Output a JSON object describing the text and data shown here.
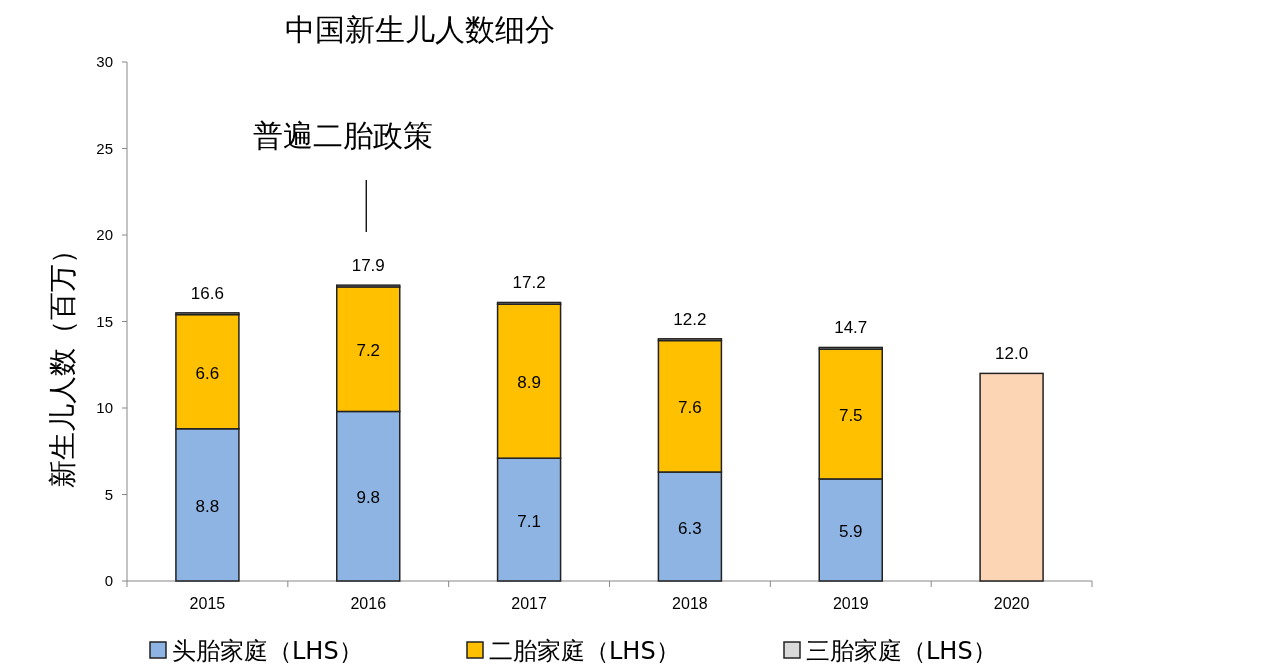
{
  "chart_data": {
    "type": "bar",
    "title": "中国新生儿人数细分",
    "ylabel": "新生儿人数（百万）",
    "stacked": true,
    "legend": "bottom",
    "grid": false,
    "categories": [
      "2015",
      "2016",
      "2017",
      "2018",
      "2019",
      "2020"
    ],
    "ylim": [
      0,
      30
    ],
    "yticks": [
      0,
      5,
      10,
      15,
      20,
      25,
      30
    ],
    "series": [
      {
        "name": "头胎家庭（LHS）",
        "color": "#8eb4e3",
        "values": [
          8.8,
          9.8,
          7.1,
          6.3,
          5.9,
          null
        ],
        "value_labels": [
          "8.8",
          "9.8",
          "7.1",
          "6.3",
          "5.9",
          null
        ]
      },
      {
        "name": "二胎家庭（LHS）",
        "color": "#ffc000",
        "values": [
          6.6,
          7.2,
          8.9,
          7.6,
          7.5,
          null
        ],
        "value_labels": [
          "6.6",
          "7.2",
          "8.9",
          "7.6",
          "7.5",
          null
        ]
      },
      {
        "name": "三胎家庭（LHS）",
        "color": "#d9d9d9",
        "values": [
          0.1,
          0.1,
          0.1,
          0.1,
          0.1,
          null
        ]
      },
      {
        "color": "#fcd5b5",
        "values": [
          null,
          null,
          null,
          null,
          null,
          12.0
        ],
        "value_labels": [
          null,
          null,
          null,
          null,
          null,
          "12.0"
        ]
      }
    ],
    "annotations": [
      "普遍二胎政策",
      {
        "text": "16.6",
        "x": "2015",
        "y": 15.5
      },
      {
        "text": "17.9",
        "x": "2016",
        "y": 17.1
      },
      {
        "text": "17.2",
        "x": "2017",
        "y": 16.1
      },
      {
        "text": "12.2",
        "x": "2018",
        "y": 14.0
      },
      {
        "text": "14.7",
        "x": "2019",
        "y": 13.5
      }
    ]
  }
}
